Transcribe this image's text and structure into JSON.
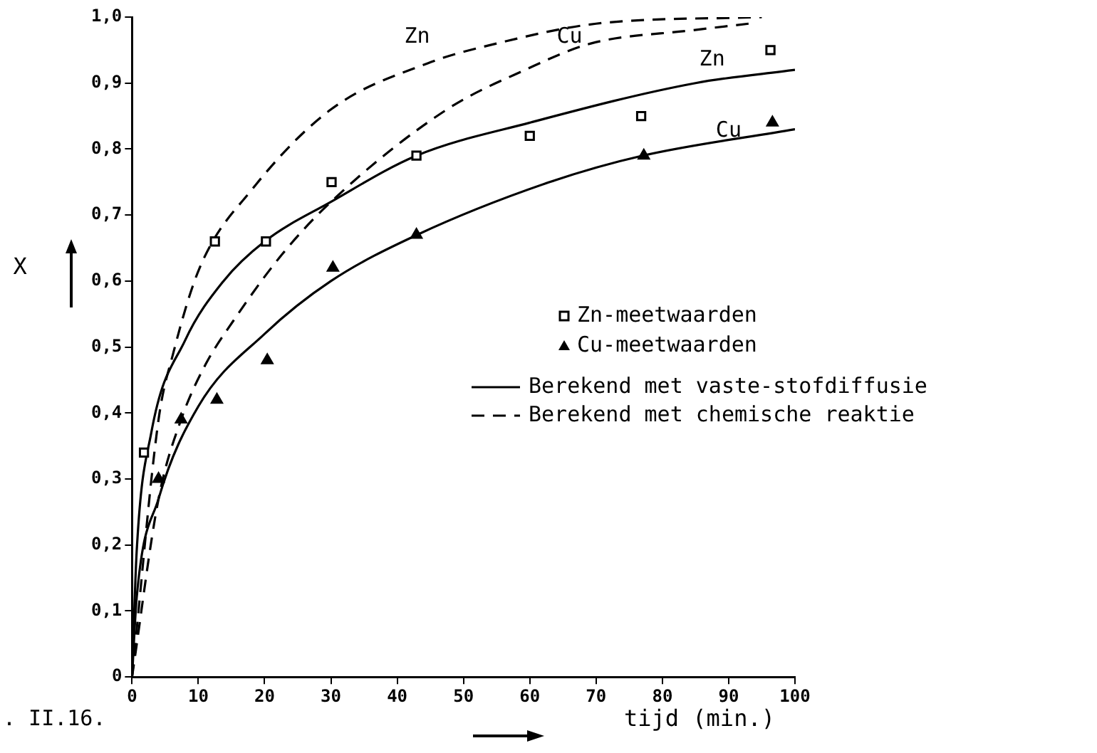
{
  "chart_data": {
    "type": "line",
    "xlabel": "tijd (min.)",
    "ylabel": "X",
    "xlim": [
      0,
      100
    ],
    "xticks": [
      0,
      10,
      20,
      30,
      40,
      50,
      60,
      70,
      80,
      90,
      100
    ],
    "ylim": [
      0,
      1.0
    ],
    "yticks": [
      0,
      {
        "value": 0.1,
        "label": "0,1"
      },
      {
        "value": 0.2,
        "label": "0,2"
      },
      {
        "value": 0.3,
        "label": "0,3"
      },
      {
        "value": 0.4,
        "label": "0,4"
      },
      {
        "value": 0.5,
        "label": "0,5"
      },
      {
        "value": 0.6,
        "label": "0,6"
      },
      {
        "value": 0.7,
        "label": "0,7"
      },
      {
        "value": 0.8,
        "label": "0,8"
      },
      {
        "value": 0.9,
        "label": "0,9"
      },
      {
        "value": 1.0,
        "label": "1,0"
      }
    ],
    "grid": false,
    "legend": "right",
    "series": [
      {
        "type": "scatter",
        "name": "Zn-meetwaarden",
        "color": "#000000",
        "marker": "square",
        "x": [
          1.8,
          12.5,
          20.2,
          30.1,
          42.9,
          60,
          76.8,
          96.3
        ],
        "values": [
          0.34,
          0.66,
          0.66,
          0.75,
          0.79,
          0.82,
          0.85,
          0.95
        ]
      },
      {
        "type": "scatter",
        "name": "Cu-meetwaarden",
        "color": "#000000",
        "marker": "triangle",
        "x": [
          4.0,
          7.4,
          12.8,
          20.4,
          30.3,
          42.9,
          77.2,
          96.6
        ],
        "values": [
          0.3,
          0.39,
          0.42,
          0.48,
          0.62,
          0.67,
          0.79,
          0.84
        ]
      },
      {
        "name": "Berekend met vaste-stofdiffusie",
        "color": "#000000",
        "line_style": "solid",
        "marker": "none",
        "x": [
          0,
          0.7,
          2.9,
          8,
          13.8,
          20,
          30,
          42.9,
          60,
          85,
          100
        ],
        "values": [
          0,
          0.19,
          0.37,
          0.51,
          0.6,
          0.66,
          0.72,
          0.79,
          0.84,
          0.9,
          0.92
        ]
      },
      {
        "color": "#000000",
        "line_style": "solid",
        "marker": "none",
        "x": [
          0,
          0.7,
          4,
          10,
          20,
          30,
          43,
          63,
          77,
          100
        ],
        "values": [
          0,
          0.12,
          0.27,
          0.41,
          0.52,
          0.6,
          0.67,
          0.75,
          0.79,
          0.83
        ]
      },
      {
        "name": "Berekend met chemische reaktie",
        "color": "#000000",
        "line_style": "dashed",
        "marker": "none",
        "x": [
          0,
          4,
          6.2,
          10.2,
          18.2,
          30,
          44.6,
          55,
          70,
          95
        ],
        "values": [
          0,
          0.39,
          0.49,
          0.62,
          0.74,
          0.86,
          0.93,
          0.96,
          0.99,
          1.0
        ]
      },
      {
        "color": "#000000",
        "line_style": "dashed",
        "marker": "none",
        "x": [
          0,
          4,
          7.4,
          10.9,
          15.3,
          22.6,
          30,
          47.5,
          59.3,
          69.2,
          84.5,
          93
        ],
        "values": [
          0,
          0.27,
          0.39,
          0.47,
          0.54,
          0.64,
          0.72,
          0.86,
          0.92,
          0.96,
          0.98,
          0.99
        ]
      }
    ],
    "annotations": [
      "Zn",
      "Cu",
      "Zn",
      "Cu",
      ". II.16."
    ]
  }
}
